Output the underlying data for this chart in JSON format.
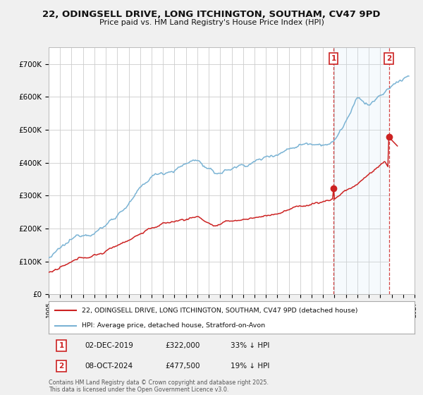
{
  "title": "22, ODINGSELL DRIVE, LONG ITCHINGTON, SOUTHAM, CV47 9PD",
  "subtitle": "Price paid vs. HM Land Registry's House Price Index (HPI)",
  "xlim_start": 1995.0,
  "xlim_end": 2027.0,
  "ylim_min": 0,
  "ylim_max": 750000,
  "yticks": [
    0,
    100000,
    200000,
    300000,
    400000,
    500000,
    600000,
    700000
  ],
  "ytick_labels": [
    "£0",
    "£100K",
    "£200K",
    "£300K",
    "£400K",
    "£500K",
    "£600K",
    "£700K"
  ],
  "hpi_color": "#7ab3d4",
  "price_color": "#cc2222",
  "marker1_date": 2019.917,
  "marker1_price": 322000,
  "marker1_date_str": "02-DEC-2019",
  "marker1_price_str": "£322,000",
  "marker1_note": "33% ↓ HPI",
  "marker2_date": 2024.75,
  "marker2_price": 477500,
  "marker2_date_str": "08-OCT-2024",
  "marker2_price_str": "£477,500",
  "marker2_note": "19% ↓ HPI",
  "legend_line1": "22, ODINGSELL DRIVE, LONG ITCHINGTON, SOUTHAM, CV47 9PD (detached house)",
  "legend_line2": "HPI: Average price, detached house, Stratford-on-Avon",
  "footnote": "Contains HM Land Registry data © Crown copyright and database right 2025.\nThis data is licensed under the Open Government Licence v3.0.",
  "bg_color": "#f0f0f0",
  "plot_bg": "#ffffff",
  "grid_color": "#cccccc",
  "shade_color": "#d0e8f5",
  "hatch_color": "#c0d8e8"
}
